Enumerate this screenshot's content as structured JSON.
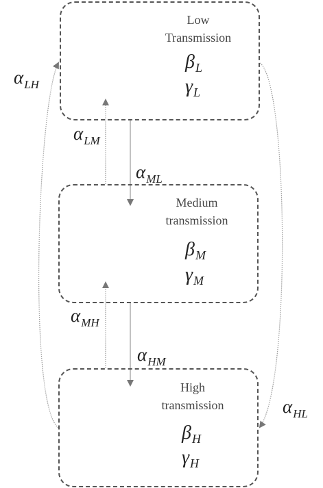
{
  "states": {
    "low": {
      "title_line1": "Low",
      "title_line2": "Transmission",
      "beta_symbol": "β",
      "beta_sub": "L",
      "gamma_symbol": "γ",
      "gamma_sub": "L"
    },
    "medium": {
      "title_line1": "Medium",
      "title_line2": "transmission",
      "beta_symbol": "β",
      "beta_sub": "M",
      "gamma_symbol": "γ",
      "gamma_sub": "M"
    },
    "high": {
      "title_line1": "High",
      "title_line2": "transmission",
      "beta_symbol": "β",
      "beta_sub": "H",
      "gamma_symbol": "γ",
      "gamma_sub": "H"
    }
  },
  "transitions": {
    "LH": {
      "symbol": "α",
      "sub": "LH"
    },
    "LM": {
      "symbol": "α",
      "sub": "LM"
    },
    "ML": {
      "symbol": "α",
      "sub": "ML"
    },
    "MH": {
      "symbol": "α",
      "sub": "MH"
    },
    "HM": {
      "symbol": "α",
      "sub": "HM"
    },
    "HL": {
      "symbol": "α",
      "sub": "HL"
    }
  },
  "colors": {
    "box_border": "#555555",
    "arrow": "#8a8a8a",
    "arrowhead": "#777777",
    "text": "#222222"
  }
}
